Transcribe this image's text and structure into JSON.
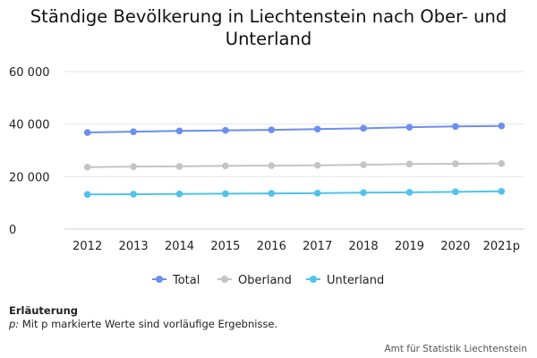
{
  "chart_data": {
    "type": "line",
    "title": "Ständige Bevölkerung in Liechtenstein nach Ober- und Unterland",
    "categories": [
      "2012",
      "2013",
      "2014",
      "2015",
      "2016",
      "2017",
      "2018",
      "2019",
      "2020",
      "2021p"
    ],
    "ylim": [
      0,
      60000
    ],
    "yticks": [
      0,
      20000,
      40000,
      60000
    ],
    "ytick_labels": [
      "0",
      "20 000",
      "40 000",
      "60 000"
    ],
    "grid": true,
    "legend_position": "bottom",
    "series": [
      {
        "name": "Total",
        "color": "#6b8ff0",
        "values": [
          36800,
          37100,
          37400,
          37600,
          37800,
          38100,
          38400,
          38800,
          39100,
          39300
        ]
      },
      {
        "name": "Oberland",
        "color": "#c4c4c4",
        "values": [
          23600,
          23800,
          23900,
          24100,
          24200,
          24300,
          24500,
          24800,
          24900,
          25000
        ]
      },
      {
        "name": "Unterland",
        "color": "#4fc3ec",
        "values": [
          13200,
          13300,
          13400,
          13500,
          13600,
          13700,
          13900,
          14000,
          14200,
          14400
        ]
      }
    ]
  },
  "notes": {
    "heading": "Erläuterung",
    "p_marker": "p:",
    "text": " Mit p markierte Werte sind vorläufige Ergebnisse."
  },
  "source": "Amt für Statistik Liechtenstein"
}
